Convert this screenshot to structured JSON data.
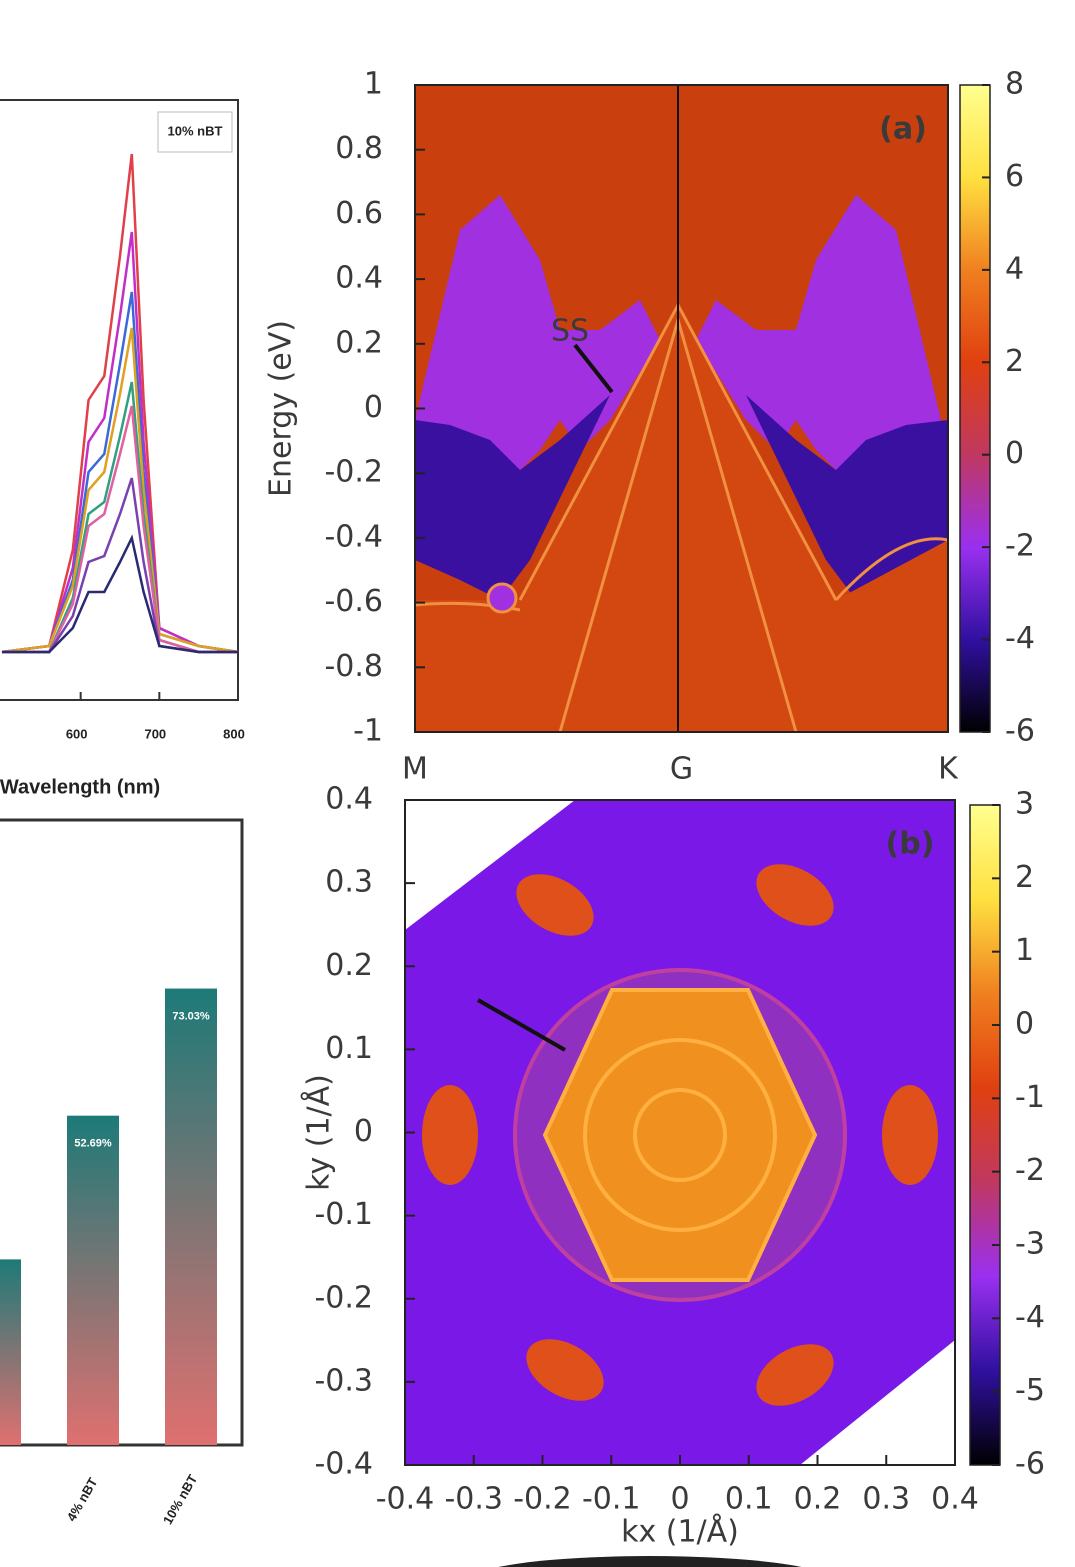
{
  "chart_data": [
    {
      "type": "line",
      "title": "10% nBT",
      "xlabel": "Wavelength (nm)",
      "x": [
        500,
        560,
        590,
        610,
        630,
        650,
        665,
        680,
        700,
        750,
        800
      ],
      "xlim": [
        500,
        800
      ],
      "xticks": [
        600,
        700,
        800
      ],
      "ylim": [
        0,
        1
      ],
      "series": [
        {
          "color": "#e0404a",
          "values": [
            0.08,
            0.09,
            0.25,
            0.5,
            0.54,
            0.74,
            0.91,
            0.5,
            0.12,
            0.09,
            0.08
          ]
        },
        {
          "color": "#c030c8",
          "values": [
            0.08,
            0.09,
            0.22,
            0.43,
            0.47,
            0.64,
            0.78,
            0.43,
            0.12,
            0.09,
            0.08
          ]
        },
        {
          "color": "#3a6ad8",
          "values": [
            0.08,
            0.09,
            0.2,
            0.38,
            0.41,
            0.56,
            0.68,
            0.38,
            0.11,
            0.09,
            0.08
          ]
        },
        {
          "color": "#e0a020",
          "values": [
            0.08,
            0.09,
            0.19,
            0.35,
            0.38,
            0.51,
            0.62,
            0.35,
            0.11,
            0.09,
            0.08
          ]
        },
        {
          "color": "#30a080",
          "values": [
            0.08,
            0.08,
            0.17,
            0.31,
            0.33,
            0.44,
            0.53,
            0.31,
            0.1,
            0.08,
            0.08
          ]
        },
        {
          "color": "#e060a0",
          "values": [
            0.08,
            0.08,
            0.16,
            0.29,
            0.31,
            0.41,
            0.49,
            0.29,
            0.1,
            0.08,
            0.08
          ]
        },
        {
          "color": "#7a40b0",
          "values": [
            0.08,
            0.08,
            0.14,
            0.23,
            0.24,
            0.31,
            0.37,
            0.23,
            0.09,
            0.08,
            0.08
          ]
        },
        {
          "color": "#2a2a70",
          "values": [
            0.08,
            0.08,
            0.12,
            0.18,
            0.18,
            0.23,
            0.27,
            0.18,
            0.09,
            0.08,
            0.08
          ]
        }
      ]
    },
    {
      "type": "bar",
      "categories": [
        null,
        "4% nBT",
        "10% nBT"
      ],
      "values": [
        29.7,
        52.69,
        73.03
      ],
      "value_labels": [
        null,
        "52.69%",
        "73.03%"
      ],
      "ylim": [
        0,
        100
      ],
      "gradient": [
        "#1d7a78",
        "#e07070"
      ]
    },
    {
      "type": "heatmap",
      "panel": "(a)",
      "ylabel": "Energy (eV)",
      "annotation": "SS",
      "categories": [
        "M",
        "G",
        "K"
      ],
      "ylim": [
        -1,
        1
      ],
      "yticks": [
        1,
        0.8,
        0.6,
        0.4,
        0.2,
        0,
        -0.2,
        -0.4,
        -0.6,
        -0.8,
        -1
      ],
      "cblim": [
        -6,
        8
      ],
      "cbticks": [
        8,
        6,
        4,
        2,
        0,
        -2,
        -4,
        -6
      ],
      "colormap": [
        "#000000",
        "#3010a0",
        "#9a30f0",
        "#c03860",
        "#e04010",
        "#f08020",
        "#ffe040",
        "#ffff90"
      ]
    },
    {
      "type": "heatmap",
      "panel": "(b)",
      "xlabel": "kx (1/Å)",
      "ylabel": "ky (1/Å)",
      "xlim": [
        -0.4,
        0.4
      ],
      "xticks": [
        -0.4,
        -0.3,
        -0.2,
        -0.1,
        0,
        0.1,
        0.2,
        0.3,
        0.4
      ],
      "ylim": [
        -0.4,
        0.4
      ],
      "yticks": [
        0.4,
        0.3,
        0.2,
        0.1,
        0,
        -0.1,
        -0.2,
        -0.3,
        -0.4
      ],
      "cblim": [
        -6,
        3
      ],
      "cbticks": [
        3,
        2,
        1,
        0,
        -1,
        -2,
        -3,
        -4,
        -5,
        -6
      ],
      "colormap": [
        "#000000",
        "#3010a0",
        "#9a30f0",
        "#c03860",
        "#e04010",
        "#f08020",
        "#ffe040",
        "#ffff90"
      ]
    }
  ]
}
